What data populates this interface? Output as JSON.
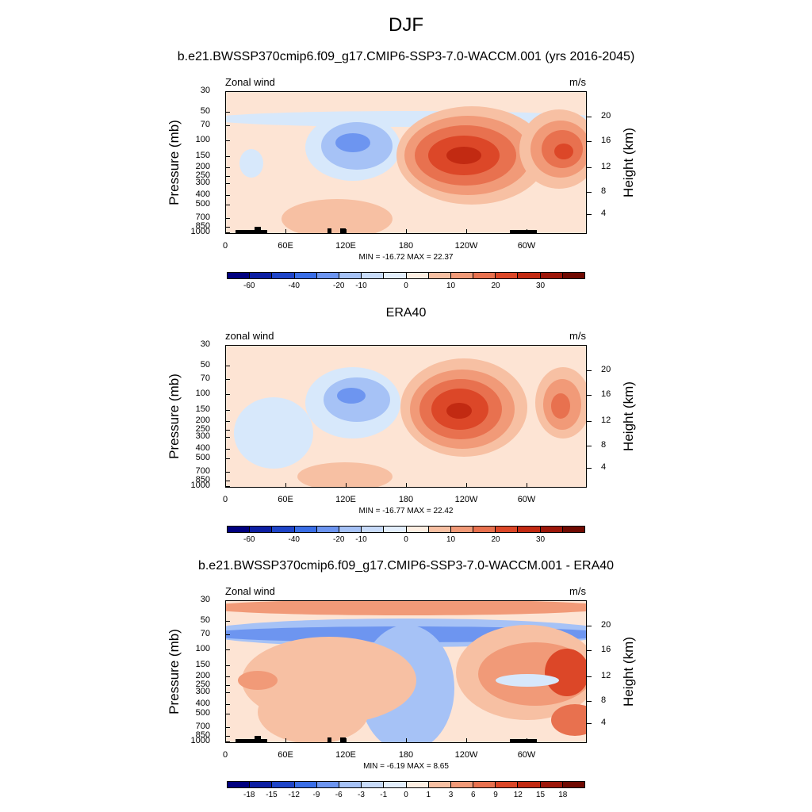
{
  "title": "DJF",
  "colors": {
    "fill": [
      "#00007f",
      "#0d1fa3",
      "#1f45c8",
      "#3a6ee6",
      "#6d95f0",
      "#a6c2f6",
      "#d7e8fb",
      "#fde4d4",
      "#f7c0a3",
      "#f19a78",
      "#e8714f",
      "#dc4728",
      "#c22a12",
      "#9d170a",
      "#700a02"
    ]
  },
  "panels": [
    {
      "subtitle": "b.e21.BWSSP370cmip6.f09_g17.CMIP6-SSP3-7.0-WACCM.001 (yrs 2016-2045)",
      "left_label": "Zonal wind",
      "right_label": "m/s",
      "ylabel": "Pressure (mb)",
      "y2label": "Height (km)",
      "minmax": "MIN = -16.72  MAX =  22.37",
      "cbar_labels": [
        "-60",
        "-40",
        "-20",
        "-10",
        "0",
        "10",
        "20",
        "30"
      ]
    },
    {
      "subtitle": "ERA40",
      "left_label": "zonal wind",
      "right_label": "m/s",
      "ylabel": "Pressure (mb)",
      "y2label": "Height (km)",
      "minmax": "MIN = -16.77  MAX =  22.42",
      "cbar_labels": [
        "-60",
        "-40",
        "-20",
        "-10",
        "0",
        "10",
        "20",
        "30"
      ]
    },
    {
      "subtitle": "b.e21.BWSSP370cmip6.f09_g17.CMIP6-SSP3-7.0-WACCM.001 - ERA40",
      "left_label": "Zonal wind",
      "right_label": "m/s",
      "ylabel": "Pressure (mb)",
      "y2label": "Height (km)",
      "minmax": "MIN =  -6.19  MAX =   8.65",
      "cbar_labels": [
        "-18",
        "-15",
        "-12",
        "-9",
        "-6",
        "-3",
        "-1",
        "0",
        "1",
        "3",
        "6",
        "9",
        "12",
        "15",
        "18"
      ]
    }
  ],
  "chart_data": {
    "type": "heatmap",
    "title": "DJF",
    "xlabel": "",
    "ylabel": "Pressure (mb)",
    "y2label": "Height (km)",
    "x_ticks": [
      "0",
      "60E",
      "120E",
      "180",
      "120W",
      "60W"
    ],
    "y_ticks": [
      "30",
      "50",
      "70",
      "100",
      "150",
      "200",
      "250",
      "300",
      "400",
      "500",
      "700",
      "850",
      "1000"
    ],
    "y2_ticks": [
      "20",
      "16",
      "12",
      "8",
      "4"
    ],
    "ylim": [
      1000,
      30
    ],
    "panels": [
      {
        "name": "b.e21.BWSSP370cmip6.f09_g17.CMIP6-SSP3-7.0-WACCM.001 (yrs 2016-2045)",
        "min": -16.72,
        "max": 22.37,
        "levels": [
          -60,
          -40,
          -20,
          -10,
          0,
          10,
          20,
          30
        ]
      },
      {
        "name": "ERA40",
        "min": -16.77,
        "max": 22.42,
        "levels": [
          -60,
          -40,
          -20,
          -10,
          0,
          10,
          20,
          30
        ]
      },
      {
        "name": "b.e21.BWSSP370cmip6.f09_g17.CMIP6-SSP3-7.0-WACCM.001 - ERA40",
        "min": -6.19,
        "max": 8.65,
        "levels": [
          -18,
          -15,
          -12,
          -9,
          -6,
          -3,
          -1,
          0,
          1,
          3,
          6,
          9,
          12,
          15,
          18
        ]
      }
    ]
  }
}
